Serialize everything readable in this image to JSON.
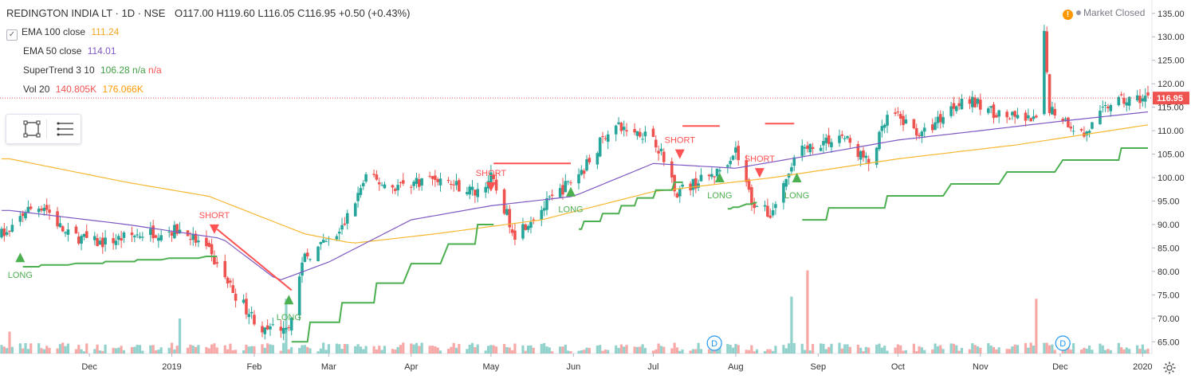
{
  "header": {
    "symbol": "REDINGTON INDIA LT · 1D · NSE",
    "open": "O117.00",
    "high": "H119.60",
    "low": "L116.05",
    "close": "C116.95",
    "change": "+0.50 (+0.43%)"
  },
  "indicators": {
    "ema100": {
      "label": "EMA 100 close",
      "value": "111.24",
      "color": "#f7b731"
    },
    "ema50": {
      "label": "EMA 50 close",
      "value": "114.01",
      "color": "#7e57c2"
    },
    "supertrend": {
      "label": "SuperTrend 3 10",
      "value": "106.28",
      "v2": "n/a",
      "v3": "n/a",
      "color": "#4caf50"
    },
    "volume": {
      "label": "Vol 20",
      "value": "140.805K",
      "avg": "176.066K",
      "color": "#ef5350",
      "avg_color": "#ff9800"
    }
  },
  "status": {
    "market": "Market Closed"
  },
  "icons": {
    "toolbar": [
      "rectangle-select-icon",
      "menu-lines-icon"
    ],
    "status": "warning-icon",
    "settings": "gear-icon"
  },
  "colors": {
    "up": "#26a69a",
    "down": "#ef5350",
    "st_up": "#4caf50",
    "st_down": "#ff5252"
  },
  "chart_data": {
    "type": "candlestick",
    "title": "REDINGTON INDIA LT · 1D · NSE",
    "y_ticks": [
      65,
      70,
      75,
      80,
      85,
      90,
      95,
      100,
      105,
      110,
      115,
      120,
      125,
      130,
      135
    ],
    "y_tick_labels": [
      "65.00",
      "70.00",
      "75.00",
      "80.00",
      "85.00",
      "90.00",
      "95.00",
      "100.00",
      "105.00",
      "110.00",
      "115.00",
      "120.00",
      "125.00",
      "130.00",
      "135.00"
    ],
    "ylim": [
      62.5,
      137
    ],
    "x_labels": [
      "Dec",
      "2019",
      "Feb",
      "Mar",
      "Apr",
      "May",
      "Jun",
      "Jul",
      "Aug",
      "Sep",
      "Oct",
      "Nov",
      "Dec",
      "2020"
    ],
    "last_price": "116.95",
    "price_keypoints": [
      {
        "x": "2018-11-01",
        "v": 88
      },
      {
        "x": "2018-11-07",
        "v": 93
      },
      {
        "x": "2018-11-14",
        "v": 94
      },
      {
        "x": "2018-11-22",
        "v": 88
      },
      {
        "x": "2018-12-05",
        "v": 86
      },
      {
        "x": "2018-12-20",
        "v": 88
      },
      {
        "x": "2019-01-05",
        "v": 89
      },
      {
        "x": "2019-01-15",
        "v": 84
      },
      {
        "x": "2019-01-25",
        "v": 75
      },
      {
        "x": "2019-02-05",
        "v": 67
      },
      {
        "x": "2019-02-14",
        "v": 69
      },
      {
        "x": "2019-02-20",
        "v": 83
      },
      {
        "x": "2019-03-05",
        "v": 88
      },
      {
        "x": "2019-03-15",
        "v": 100
      },
      {
        "x": "2019-03-25",
        "v": 98
      },
      {
        "x": "2019-04-10",
        "v": 100
      },
      {
        "x": "2019-04-25",
        "v": 97
      },
      {
        "x": "2019-05-01",
        "v": 100
      },
      {
        "x": "2019-05-10",
        "v": 88
      },
      {
        "x": "2019-05-25",
        "v": 96
      },
      {
        "x": "2019-06-05",
        "v": 102
      },
      {
        "x": "2019-06-15",
        "v": 111
      },
      {
        "x": "2019-07-01",
        "v": 109
      },
      {
        "x": "2019-07-10",
        "v": 97
      },
      {
        "x": "2019-07-25",
        "v": 101
      },
      {
        "x": "2019-08-01",
        "v": 106
      },
      {
        "x": "2019-08-07",
        "v": 95
      },
      {
        "x": "2019-08-14",
        "v": 92
      },
      {
        "x": "2019-08-25",
        "v": 106
      },
      {
        "x": "2019-09-10",
        "v": 109
      },
      {
        "x": "2019-09-20",
        "v": 103
      },
      {
        "x": "2019-09-28",
        "v": 114
      },
      {
        "x": "2019-10-10",
        "v": 109
      },
      {
        "x": "2019-10-25",
        "v": 117
      },
      {
        "x": "2019-11-10",
        "v": 113
      },
      {
        "x": "2019-11-22",
        "v": 112
      },
      {
        "x": "2019-11-25",
        "v": 130
      },
      {
        "x": "2019-11-27",
        "v": 115
      },
      {
        "x": "2019-12-10",
        "v": 109
      },
      {
        "x": "2019-12-20",
        "v": 116
      },
      {
        "x": "2020-01-03",
        "v": 117
      }
    ],
    "ema50_keypoints": [
      {
        "x": "2018-11-01",
        "v": 93
      },
      {
        "x": "2018-12-15",
        "v": 90
      },
      {
        "x": "2019-01-20",
        "v": 87
      },
      {
        "x": "2019-02-10",
        "v": 78
      },
      {
        "x": "2019-03-01",
        "v": 82
      },
      {
        "x": "2019-04-01",
        "v": 91
      },
      {
        "x": "2019-05-01",
        "v": 94
      },
      {
        "x": "2019-06-01",
        "v": 96
      },
      {
        "x": "2019-07-01",
        "v": 103
      },
      {
        "x": "2019-08-01",
        "v": 102
      },
      {
        "x": "2019-09-01",
        "v": 105
      },
      {
        "x": "2019-10-01",
        "v": 108
      },
      {
        "x": "2019-11-01",
        "v": 110
      },
      {
        "x": "2019-12-01",
        "v": 112
      },
      {
        "x": "2020-01-03",
        "v": 114
      }
    ],
    "ema100_keypoints": [
      {
        "x": "2018-11-01",
        "v": 104
      },
      {
        "x": "2018-12-15",
        "v": 99
      },
      {
        "x": "2019-01-15",
        "v": 96
      },
      {
        "x": "2019-02-20",
        "v": 88
      },
      {
        "x": "2019-03-10",
        "v": 86
      },
      {
        "x": "2019-04-10",
        "v": 88
      },
      {
        "x": "2019-05-20",
        "v": 91
      },
      {
        "x": "2019-07-01",
        "v": 97
      },
      {
        "x": "2019-08-15",
        "v": 100
      },
      {
        "x": "2019-10-01",
        "v": 104
      },
      {
        "x": "2019-11-15",
        "v": 107
      },
      {
        "x": "2020-01-03",
        "v": 111.24
      }
    ],
    "supertrend_segments": [
      {
        "dir": "long",
        "x0": "2018-11-06",
        "x1": "2019-01-18",
        "start": 81,
        "end": 83.2
      },
      {
        "dir": "short",
        "x0": "2019-01-18",
        "x1": "2019-02-15",
        "start": 89,
        "end": 76
      },
      {
        "dir": "long",
        "x0": "2019-02-15",
        "x1": "2019-05-02",
        "start": 65,
        "end": 90
      },
      {
        "dir": "short",
        "x0": "2019-05-02",
        "x1": "2019-06-01",
        "start": 103,
        "end": 103
      },
      {
        "dir": "long",
        "x0": "2019-06-01",
        "x1": "2019-07-12",
        "start": 89,
        "end": 99
      },
      {
        "dir": "short",
        "x0": "2019-07-12",
        "x1": "2019-07-27",
        "start": 111,
        "end": 111
      },
      {
        "dir": "long",
        "x0": "2019-07-27",
        "x1": "2019-08-11",
        "start": 93,
        "end": 95
      },
      {
        "dir": "short",
        "x0": "2019-08-11",
        "x1": "2019-08-25",
        "start": 111.5,
        "end": 111.5
      },
      {
        "dir": "long",
        "x0": "2019-08-25",
        "x1": "2020-01-03",
        "start": 91,
        "end": 106.28
      }
    ],
    "signals": [
      {
        "label": "LONG",
        "date": "2018-11-05",
        "price": 83,
        "kind": "long"
      },
      {
        "label": "SHORT",
        "date": "2019-01-17",
        "price": 89,
        "kind": "short"
      },
      {
        "label": "LONG",
        "date": "2019-02-14",
        "price": 74,
        "kind": "long"
      },
      {
        "label": "SHORT",
        "date": "2019-05-01",
        "price": 98,
        "kind": "short"
      },
      {
        "label": "LONG",
        "date": "2019-05-31",
        "price": 97,
        "kind": "long"
      },
      {
        "label": "SHORT",
        "date": "2019-07-11",
        "price": 105,
        "kind": "short"
      },
      {
        "label": "LONG",
        "date": "2019-07-26",
        "price": 100,
        "kind": "long"
      },
      {
        "label": "SHORT",
        "date": "2019-08-10",
        "price": 101,
        "kind": "short"
      },
      {
        "label": "LONG",
        "date": "2019-08-24",
        "price": 100,
        "kind": "long"
      }
    ],
    "dividend_markers": [
      {
        "label": "D",
        "date": "2019-07-24"
      },
      {
        "label": "D",
        "date": "2019-12-02"
      }
    ],
    "volume_spikes": [
      {
        "x": "2019-02-13",
        "v": 250
      },
      {
        "x": "2019-08-28",
        "v": 380
      },
      {
        "x": "2019-08-22",
        "v": 260
      },
      {
        "x": "2019-11-22",
        "v": 250
      },
      {
        "x": "2019-01-04",
        "v": 160
      },
      {
        "x": "2018-11-01",
        "v": 100
      }
    ]
  }
}
